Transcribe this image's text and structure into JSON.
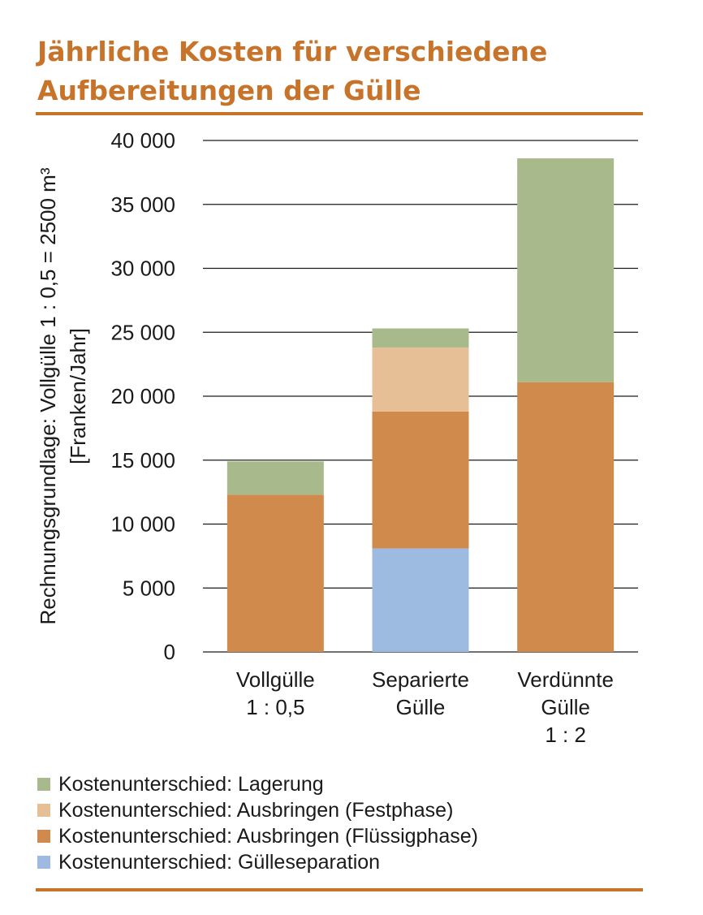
{
  "title": {
    "line1": "Jährliche Kosten für verschiedene",
    "line2": "Aufbereitungen der Gülle"
  },
  "chart_data": {
    "type": "bar",
    "stacked": true,
    "categories": [
      [
        "Vollgülle",
        "1 : 0,5"
      ],
      [
        "Separierte",
        "Gülle"
      ],
      [
        "Verdünnte",
        "Gülle",
        "1 : 2"
      ]
    ],
    "ylabel": [
      "Rechnungsgrundlage: Vollgülle 1 : 0,5 = 2500 m³",
      "[Franken/Jahr]"
    ],
    "ylim": [
      0,
      40000
    ],
    "yticks": [
      0,
      5000,
      10000,
      15000,
      20000,
      25000,
      30000,
      35000,
      40000
    ],
    "ytick_labels": [
      "0",
      "5 000",
      "10 000",
      "15 000",
      "20 000",
      "25 000",
      "30 000",
      "35 000",
      "40 000"
    ],
    "grid": true,
    "legend_position": "bottom",
    "series": [
      {
        "name": "Kostenunterschied: Gülleseparation",
        "color": "#9dbbe0",
        "values": [
          0,
          8100,
          0
        ]
      },
      {
        "name": "Kostenunterschied: Ausbringen (Flüssigphase)",
        "color": "#d08b4c",
        "values": [
          12300,
          10700,
          21100
        ]
      },
      {
        "name": "Kostenunterschied: Ausbringen (Festphase)",
        "color": "#e7bf97",
        "values": [
          0,
          5000,
          0
        ]
      },
      {
        "name": "Kostenunterschied: Lagerung",
        "color": "#a8b98b",
        "values": [
          2600,
          1500,
          17500
        ]
      }
    ],
    "legend_order": [
      "Kostenunterschied: Lagerung",
      "Kostenunterschied: Ausbringen (Festphase)",
      "Kostenunterschied: Ausbringen (Flüssigphase)",
      "Kostenunterschied: Gülleseparation"
    ]
  }
}
